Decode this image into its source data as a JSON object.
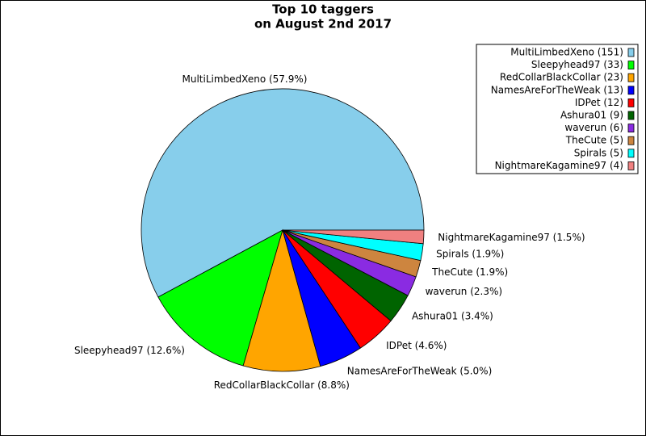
{
  "chart_data": {
    "type": "pie",
    "title": "Top 10 taggers",
    "subtitle": "on August 2nd 2017",
    "categories": [
      "MultiLimbedXeno",
      "Sleepyhead97",
      "RedCollarBlackCollar",
      "NamesAreForTheWeak",
      "IDPet",
      "Ashura01",
      "waverun",
      "TheCute",
      "Spirals",
      "NightmareKagamine97"
    ],
    "values": [
      151,
      33,
      23,
      13,
      12,
      9,
      6,
      5,
      5,
      4
    ],
    "legend_labels": [
      "MultiLimbedXeno (151)",
      "Sleepyhead97 (33)",
      "RedCollarBlackCollar (23)",
      "NamesAreForTheWeak (13)",
      "IDPet (12)",
      "Ashura01 (9)",
      "waverun (6)",
      "TheCute (5)",
      "Spirals (5)",
      "NightmareKagamine97 (4)"
    ],
    "percentages": [
      57.9,
      12.6,
      8.8,
      5.0,
      4.6,
      3.4,
      2.3,
      1.9,
      1.9,
      1.5
    ],
    "percentage_labels": [
      "MultiLimbedXeno (57.9%)",
      "Sleepyhead97 (12.6%)",
      "RedCollarBlackCollar (8.8%)",
      "NamesAreForTheWeak (5.0%)",
      "IDPet (4.6%)",
      "Ashura01 (3.4%)",
      "waverun (2.3%)",
      "TheCute (1.9%)",
      "Spirals (1.9%)",
      "NightmareKagamine97 (1.5%)"
    ],
    "colors": [
      "#87ceeb",
      "#00ff00",
      "#ffa500",
      "#0000ff",
      "#ff0000",
      "#006400",
      "#8a2be2",
      "#cd853f",
      "#00ffff",
      "#f08080"
    ],
    "legend_loc": "upper right"
  }
}
